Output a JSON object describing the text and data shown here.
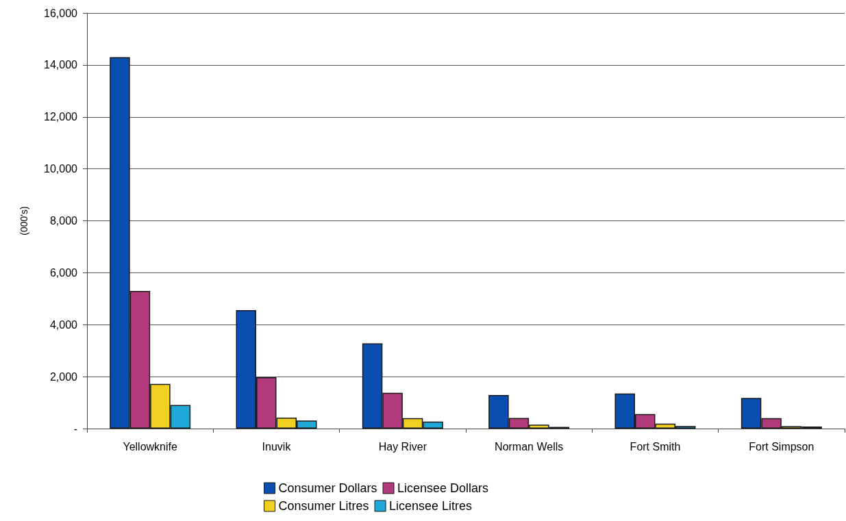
{
  "chart_data": {
    "type": "bar",
    "ylabel": "(000's)",
    "categories": [
      "Yellowknife",
      "Inuvik",
      "Hay River",
      "Norman Wells",
      "Fort Smith",
      "Fort Simpson"
    ],
    "series": [
      {
        "name": "Consumer Dollars",
        "color": "#0a4fb0",
        "values": [
          14300,
          4560,
          3280,
          1290,
          1350,
          1180
        ]
      },
      {
        "name": "Licensee Dollars",
        "color": "#b03a7a",
        "values": [
          5300,
          1980,
          1380,
          410,
          560,
          400
        ]
      },
      {
        "name": "Consumer Litres",
        "color": "#f0d020",
        "values": [
          1720,
          420,
          400,
          150,
          190,
          90
        ]
      },
      {
        "name": "Licensee Litres",
        "color": "#20a8d8",
        "values": [
          910,
          310,
          270,
          65,
          100,
          80
        ]
      }
    ],
    "ylim": [
      0,
      16000
    ],
    "yticks": [
      {
        "value": 0,
        "label": "-"
      },
      {
        "value": 2000,
        "label": "2,000"
      },
      {
        "value": 4000,
        "label": "4,000"
      },
      {
        "value": 6000,
        "label": "6,000"
      },
      {
        "value": 8000,
        "label": "8,000"
      },
      {
        "value": 10000,
        "label": "10,000"
      },
      {
        "value": 12000,
        "label": "12,000"
      },
      {
        "value": 14000,
        "label": "14,000"
      },
      {
        "value": 16000,
        "label": "16,000"
      }
    ],
    "grid": "y",
    "legend": "bottom"
  }
}
